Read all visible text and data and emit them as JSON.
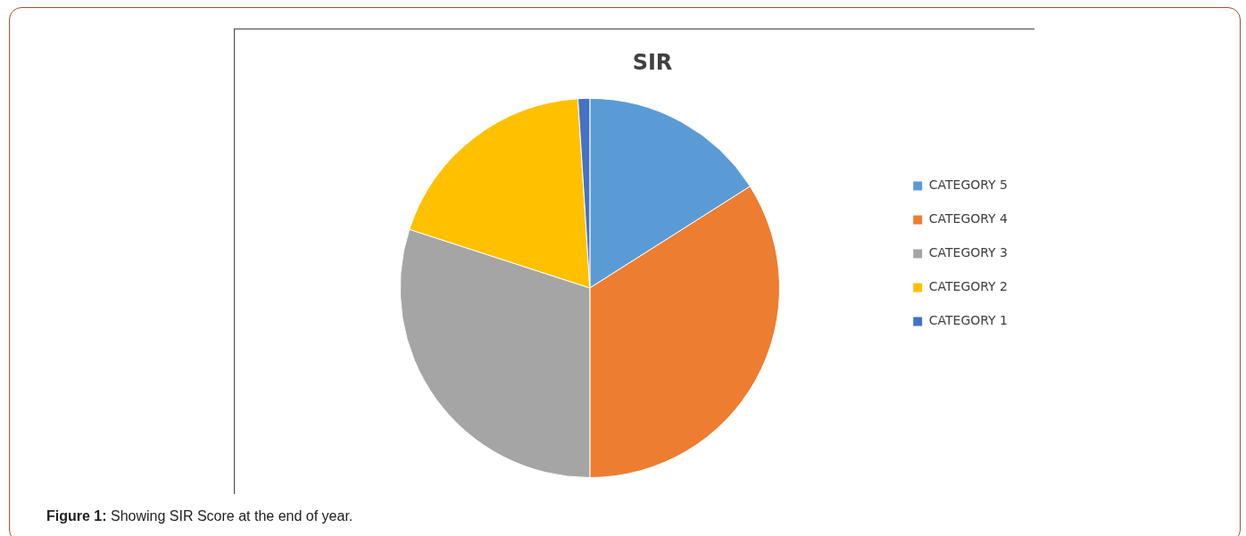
{
  "chart_data": {
    "type": "pie",
    "title": "SIR",
    "categories": [
      "CATEGORY 5",
      "CATEGORY 4",
      "CATEGORY 3",
      "CATEGORY 2",
      "CATEGORY 1"
    ],
    "values": [
      16,
      34,
      30,
      19,
      1
    ],
    "colors": [
      "#5b9bd5",
      "#ed7d31",
      "#a5a5a5",
      "#ffc000",
      "#4472c4"
    ],
    "legend": "right",
    "annotations": [
      "Figure 1: Showing SIR Score at the end of year."
    ]
  }
}
